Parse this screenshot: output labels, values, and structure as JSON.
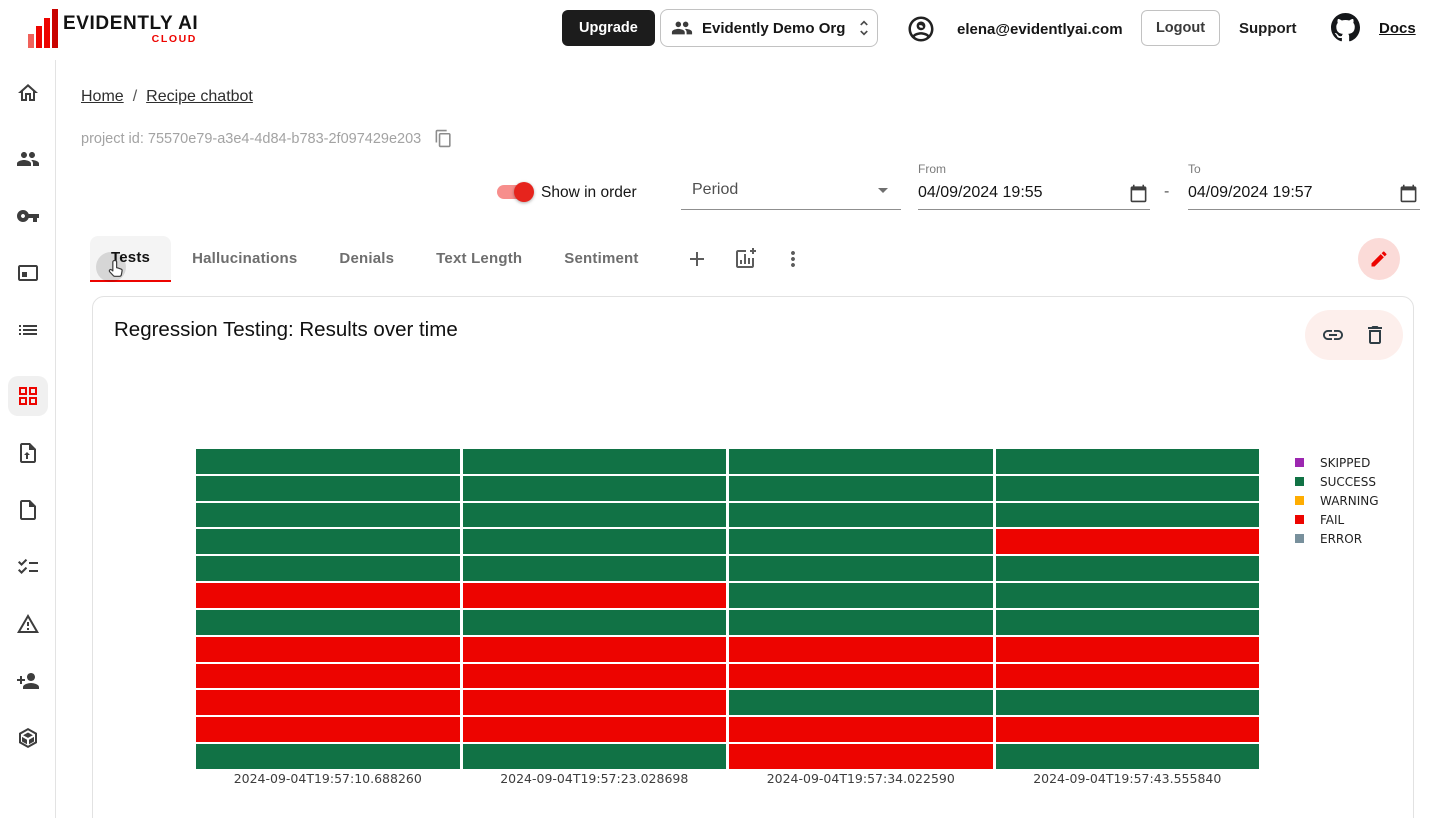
{
  "brand": {
    "name": "EVIDENTLY AI",
    "sub": "CLOUD",
    "accent": "#ed0400"
  },
  "header": {
    "upgrade_label": "Upgrade",
    "org_name": "Evidently Demo Org",
    "email": "elena@evidentlyai.com",
    "logout_label": "Logout",
    "support_label": "Support",
    "docs_label": "Docs"
  },
  "sidebar": {
    "icons": [
      "home-icon",
      "team-icon",
      "token-icon",
      "projects-icon",
      "list-icon",
      "dashboard-icon",
      "upload-icon",
      "reports-icon",
      "test-suites-icon",
      "alerts-icon",
      "invite-users-icon",
      "packages-icon"
    ],
    "active": "dashboard-icon"
  },
  "breadcrumb": {
    "home": "Home",
    "separator": "/",
    "current": "Recipe chatbot"
  },
  "project": {
    "id_line": "project id: 75570e79-a3e4-4d84-b783-2f097429e203"
  },
  "controls": {
    "show_in_order_label": "Show in order",
    "show_in_order_on": true,
    "period_placeholder": "Period",
    "from_label": "From",
    "from_value": "04/09/2024 19:55",
    "range_separator": "-",
    "to_label": "To",
    "to_value": "04/09/2024 19:57"
  },
  "tabs": [
    "Tests",
    "Hallucinations",
    "Denials",
    "Text Length",
    "Sentiment"
  ],
  "active_tab": "Tests",
  "panel": {
    "title": "Regression Testing: Results over time"
  },
  "icons": {
    "header": [
      "org-people-icon",
      "unfold-more-icon",
      "account-icon",
      "github-icon"
    ],
    "toolbar": [
      "add-tab-icon",
      "add-panel-icon",
      "more-options-icon",
      "edit-icon"
    ],
    "panel": [
      "link-icon",
      "delete-icon"
    ],
    "fields": [
      "calendar-icon",
      "copy-icon",
      "dropdown-arrow-icon"
    ],
    "overlay": [
      "hand-cursor"
    ]
  },
  "chart_data": {
    "type": "heatmap",
    "title": "Regression Testing: Results over time",
    "x": [
      "2024-09-04T19:57:10.688260",
      "2024-09-04T19:57:23.028698",
      "2024-09-04T19:57:34.022590",
      "2024-09-04T19:57:43.555840"
    ],
    "rows_per_column": 12,
    "grid": false,
    "legend_position": "right",
    "legend": [
      "SKIPPED",
      "SUCCESS",
      "WARNING",
      "FAIL",
      "ERROR"
    ],
    "status_colors": {
      "SKIPPED": "#9c27b0",
      "SUCCESS": "#117245",
      "WARNING": "#ffad01",
      "FAIL": "#ed0400",
      "ERROR": "#78909c"
    },
    "columns": [
      {
        "label": "2024-09-04T19:57:10.688260",
        "statuses": [
          "SUCCESS",
          "SUCCESS",
          "SUCCESS",
          "SUCCESS",
          "SUCCESS",
          "FAIL",
          "SUCCESS",
          "FAIL",
          "FAIL",
          "FAIL",
          "FAIL",
          "SUCCESS"
        ]
      },
      {
        "label": "2024-09-04T19:57:23.028698",
        "statuses": [
          "SUCCESS",
          "SUCCESS",
          "SUCCESS",
          "SUCCESS",
          "SUCCESS",
          "FAIL",
          "SUCCESS",
          "FAIL",
          "FAIL",
          "FAIL",
          "FAIL",
          "SUCCESS"
        ]
      },
      {
        "label": "2024-09-04T19:57:34.022590",
        "statuses": [
          "SUCCESS",
          "SUCCESS",
          "SUCCESS",
          "SUCCESS",
          "SUCCESS",
          "SUCCESS",
          "SUCCESS",
          "FAIL",
          "FAIL",
          "SUCCESS",
          "FAIL",
          "FAIL"
        ]
      },
      {
        "label": "2024-09-04T19:57:43.555840",
        "statuses": [
          "SUCCESS",
          "SUCCESS",
          "SUCCESS",
          "FAIL",
          "SUCCESS",
          "SUCCESS",
          "SUCCESS",
          "FAIL",
          "FAIL",
          "SUCCESS",
          "FAIL",
          "SUCCESS"
        ]
      }
    ]
  }
}
